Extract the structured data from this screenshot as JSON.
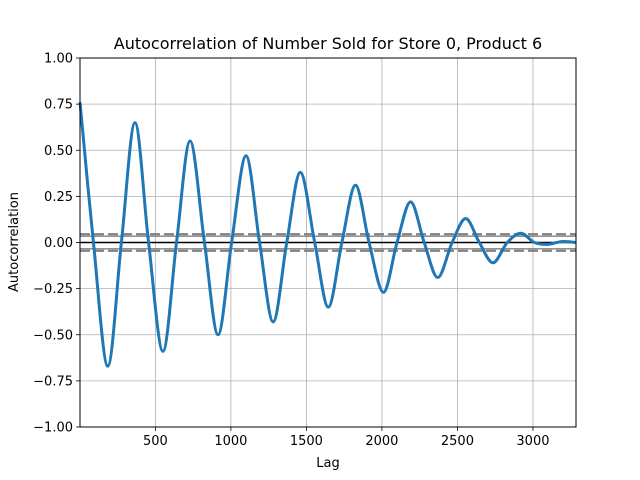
{
  "chart_data": {
    "type": "line",
    "title": "Autocorrelation of Number Sold for Store 0, Product 6",
    "xlabel": "Lag",
    "ylabel": "Autocorrelation",
    "xlim": [
      1,
      3285
    ],
    "ylim": [
      -1.0,
      1.0
    ],
    "xticks": [
      500,
      1000,
      1500,
      2000,
      2500,
      3000
    ],
    "xtick_labels": [
      "500",
      "1000",
      "1500",
      "2000",
      "2500",
      "3000"
    ],
    "yticks": [
      -1.0,
      -0.75,
      -0.5,
      -0.25,
      0.0,
      0.25,
      0.5,
      0.75,
      1.0
    ],
    "ytick_labels": [
      "−1.00",
      "−0.75",
      "−0.50",
      "−0.25",
      "0.00",
      "0.25",
      "0.50",
      "0.75",
      "1.00"
    ],
    "grid": true,
    "reference_lines": {
      "zero": 0.0,
      "conf_95": [
        0.0342,
        -0.0342
      ],
      "conf_99": [
        0.045,
        -0.045
      ]
    },
    "series": [
      {
        "x": [
          1,
          90,
          185,
          275,
          365,
          455,
          550,
          640,
          730,
          825,
          915,
          1005,
          1100,
          1190,
          1280,
          1370,
          1460,
          1555,
          1645,
          1735,
          1825,
          1915,
          2010,
          2100,
          2190,
          2280,
          2370,
          2465,
          2555,
          2645,
          2735,
          2830,
          2920,
          3010,
          3100,
          3190,
          3285
        ],
        "values": [
          0.76,
          0.0,
          -0.67,
          0.0,
          0.65,
          0.0,
          -0.59,
          0.0,
          0.55,
          0.0,
          -0.5,
          0.0,
          0.47,
          0.0,
          -0.43,
          0.0,
          0.38,
          0.0,
          -0.35,
          0.0,
          0.31,
          0.0,
          -0.27,
          0.0,
          0.22,
          0.0,
          -0.19,
          0.0,
          0.13,
          0.0,
          -0.11,
          0.0,
          0.05,
          0.0,
          -0.01,
          0.005,
          0.0
        ],
        "color": "#1f77b4"
      }
    ]
  }
}
